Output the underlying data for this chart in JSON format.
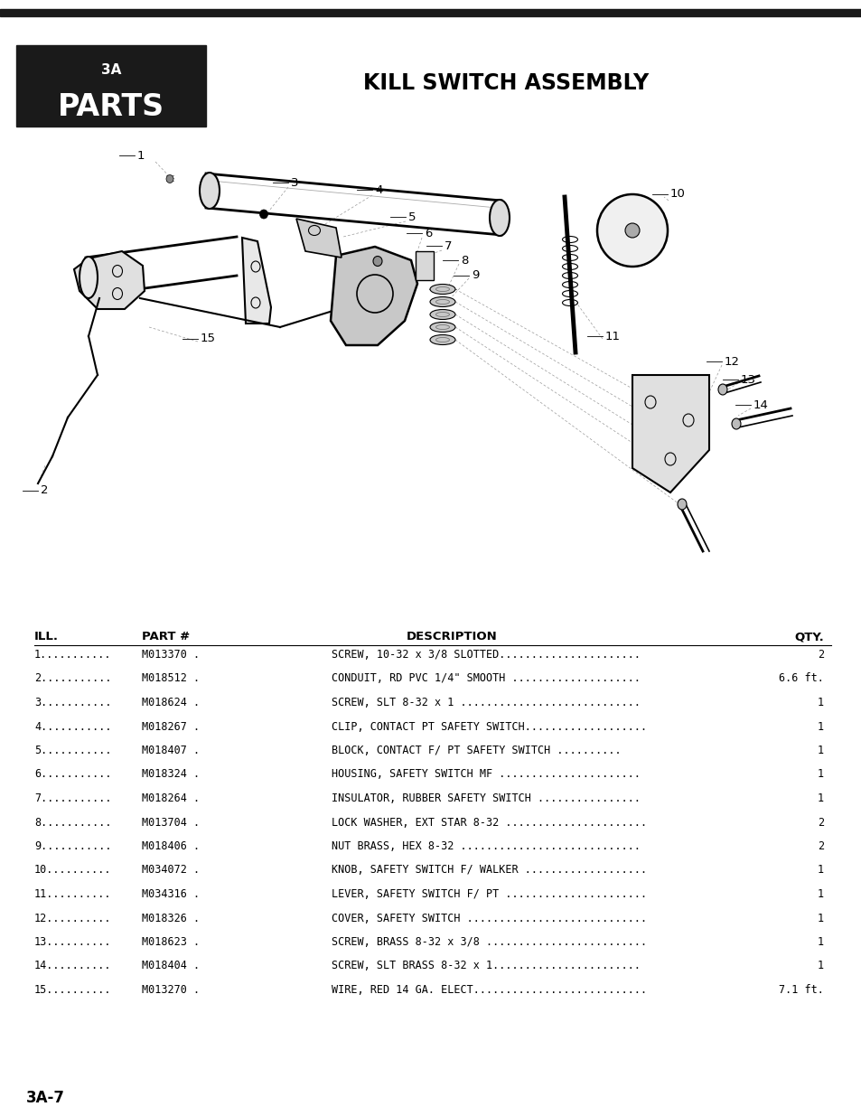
{
  "page_bg": "#ffffff",
  "header_bar_color": "#1a1a1a",
  "parts_box_color": "#1a1a1a",
  "parts_label_3a": "3A",
  "parts_label": "PARTS",
  "title_text": "KILL SWITCH ASSEMBLY",
  "footer_text": "3A-7",
  "table_rows": [
    [
      "1..",
      "M013370 .",
      "SCREW, 10-32 x 3/8 SLOTTED......................",
      "2"
    ],
    [
      "2..",
      "M018512 .",
      "CONDUIT, RD PVC 1/4\" SMOOTH ....................",
      "6.6 ft."
    ],
    [
      "3..",
      "M018624 .",
      "SCREW, SLT 8-32 x 1 ............................",
      "1"
    ],
    [
      "4..",
      "M018267 .",
      "CLIP, CONTACT PT SAFETY SWITCH...................",
      "1"
    ],
    [
      "5..",
      "M018407 .",
      "BLOCK, CONTACT F/ PT SAFETY SWITCH ..........",
      "1"
    ],
    [
      "6..",
      "M018324 .",
      "HOUSING, SAFETY SWITCH MF ......................",
      "1"
    ],
    [
      "7..",
      "M018264 .",
      "INSULATOR, RUBBER SAFETY SWITCH ................",
      "1"
    ],
    [
      "8..",
      "M013704 .",
      "LOCK WASHER, EXT STAR 8-32 ......................",
      "2"
    ],
    [
      "9..",
      "M018406 .",
      "NUT BRASS, HEX 8-32 ............................",
      "2"
    ],
    [
      "10.",
      "M034072 .",
      "KNOB, SAFETY SWITCH F/ WALKER ...................",
      "1"
    ],
    [
      "11.",
      "M034316 .",
      "LEVER, SAFETY SWITCH F/ PT ......................",
      "1"
    ],
    [
      "12.",
      "M018326 .",
      "COVER, SAFETY SWITCH ............................",
      "1"
    ],
    [
      "13.",
      "M018623 .",
      "SCREW, BRASS 8-32 x 3/8 .........................",
      "1"
    ],
    [
      "14.",
      "M018404 .",
      "SCREW, SLT BRASS 8-32 x 1.......................",
      "1"
    ],
    [
      "15.",
      "M013270 .",
      "WIRE, RED 14 GA. ELECT...........................",
      "7.1 ft."
    ]
  ]
}
